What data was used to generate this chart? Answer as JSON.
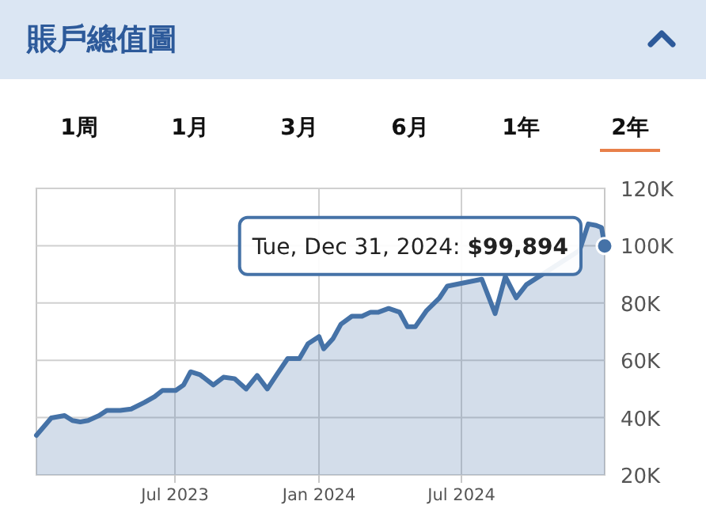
{
  "chart_data": {
    "type": "area",
    "title": "賬戶總值圖",
    "annotations": [
      "1周",
      "1月",
      "3月",
      "6月",
      "1年",
      "2年",
      {
        "text": "Tue, Dec 31, 2024: $99,894",
        "x": "2024-12-31",
        "y": 99.894
      }
    ],
    "x": [
      "2023-01-05",
      "2023-01-24",
      "2023-02-10",
      "2023-02-20",
      "2023-03-02",
      "2023-03-12",
      "2023-03-26",
      "2023-04-05",
      "2023-04-22",
      "2023-05-06",
      "2023-05-23",
      "2023-06-05",
      "2023-06-15",
      "2023-07-02",
      "2023-07-12",
      "2023-07-21",
      "2023-08-02",
      "2023-08-19",
      "2023-09-01",
      "2023-09-15",
      "2023-09-30",
      "2023-10-14",
      "2023-10-27",
      "2023-11-08",
      "2023-11-22",
      "2023-12-07",
      "2023-12-18",
      "2024-01-01",
      "2024-01-07",
      "2024-01-19",
      "2024-01-29",
      "2024-02-12",
      "2024-02-25",
      "2024-03-07",
      "2024-03-17",
      "2024-03-30",
      "2024-04-13",
      "2024-04-23",
      "2024-05-03",
      "2024-05-17",
      "2024-06-03",
      "2024-06-13",
      "2024-07-27",
      "2024-08-13",
      "2024-08-26",
      "2024-09-09",
      "2024-09-22",
      "2024-11-29",
      "2024-12-10",
      "2024-12-20",
      "2024-12-27",
      "2024-12-31"
    ],
    "series": [
      {
        "color": "#4572a7",
        "values": [
          33.8,
          39.9,
          40.7,
          39,
          38.5,
          39,
          40.7,
          42.5,
          42.5,
          43,
          45.3,
          47.3,
          49.5,
          49.5,
          51.4,
          56,
          55,
          51.4,
          54.1,
          53.6,
          50,
          54.7,
          50,
          55,
          60.6,
          60.6,
          65.8,
          68.3,
          64,
          67.6,
          72.6,
          75.4,
          75.4,
          76.8,
          76.8,
          78.1,
          76.8,
          71.7,
          71.7,
          77.2,
          81.8,
          85.9,
          88.3,
          76.3,
          89.2,
          81.8,
          86.4,
          98.4,
          107.6,
          107.1,
          106.3,
          99.894
        ]
      }
    ],
    "xlim": [
      "2023-01-05",
      "2024-12-31"
    ],
    "xticks": [
      {
        "value": "2023-07-01",
        "label": "Jul 2023"
      },
      {
        "value": "2024-01-01",
        "label": "Jan 2024"
      },
      {
        "value": "2024-07-01",
        "label": "Jul 2024"
      }
    ],
    "ylim": [
      20,
      120
    ],
    "yticks": [
      {
        "value": 20,
        "label": "20K"
      },
      {
        "value": 40,
        "label": "40K"
      },
      {
        "value": 60,
        "label": "60K"
      },
      {
        "value": 80,
        "label": "80K"
      },
      {
        "value": 100,
        "label": "100K"
      },
      {
        "value": 120,
        "label": "120K"
      }
    ],
    "grid": true
  }
}
